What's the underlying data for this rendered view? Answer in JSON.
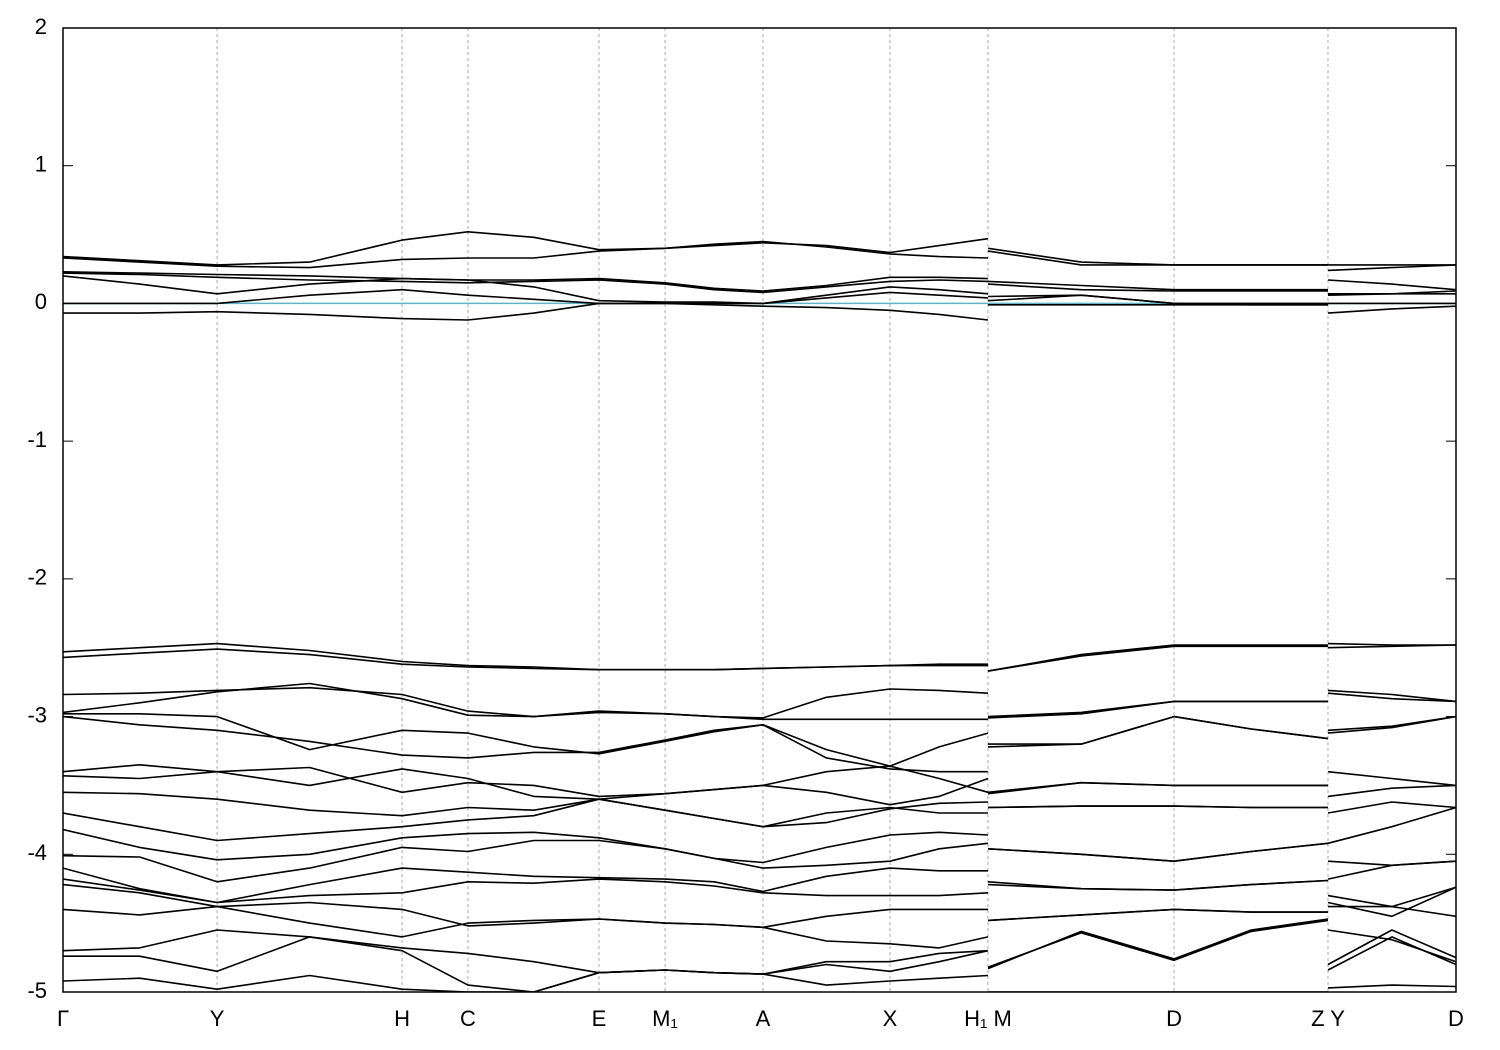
{
  "chart_data": {
    "type": "line",
    "color": "#000000",
    "grid": true,
    "hline": {
      "y": 0,
      "color": "#5fb3c4"
    },
    "xlim": [
      0,
      1
    ],
    "ylim": [
      -5,
      2
    ],
    "yticks": [
      -5,
      -4,
      -3,
      -2,
      -1,
      0,
      1,
      2
    ],
    "xticks": [
      {
        "value": 0,
        "label": "Γ"
      },
      {
        "value": 0.1106,
        "label": "Y"
      },
      {
        "value": 0.2434,
        "label": "H"
      },
      {
        "value": 0.2907,
        "label": "C"
      },
      {
        "value": 0.3848,
        "label": "E"
      },
      {
        "value": 0.4322,
        "label": "M₁"
      },
      {
        "value": 0.5025,
        "label": "A"
      },
      {
        "value": 0.5937,
        "label": "X"
      },
      {
        "value": 0.664,
        "label": "H₁ M"
      },
      {
        "value": 0.7976,
        "label": "D"
      },
      {
        "value": 0.9081,
        "label": "Z Y"
      },
      {
        "value": 1,
        "label": "D"
      }
    ],
    "x": [
      0,
      0.055,
      0.1106,
      0.177,
      0.2434,
      0.2907,
      0.338,
      0.3848,
      0.4322,
      0.4674,
      0.5025,
      0.548,
      0.5937,
      0.629,
      0.664,
      0.664,
      0.664,
      0.731,
      0.7976,
      0.853,
      0.9081,
      0.9081,
      0.9081,
      0.954,
      1
    ],
    "series": [
      {
        "values": [
          0.34,
          0.31,
          0.28,
          0.3,
          0.46,
          0.52,
          0.48,
          0.39,
          0.4,
          0.42,
          0.44,
          0.42,
          0.37,
          0.42,
          0.47,
          null,
          0.4,
          0.3,
          0.28,
          0.28,
          0.28,
          null,
          0.24,
          0.26,
          0.28
        ]
      },
      {
        "values": [
          0.33,
          0.3,
          0.27,
          0.26,
          0.32,
          0.33,
          0.33,
          0.38,
          0.4,
          0.43,
          0.45,
          0.41,
          0.36,
          0.34,
          0.33,
          null,
          0.38,
          0.28,
          0.28,
          0.28,
          0.28,
          null,
          0.28,
          0.28,
          0.28
        ]
      },
      {
        "values": [
          0.23,
          0.22,
          0.21,
          0.2,
          0.18,
          0.17,
          0.17,
          0.18,
          0.15,
          0.11,
          0.09,
          0.13,
          0.19,
          0.19,
          0.18,
          null,
          0.16,
          0.13,
          0.1,
          0.1,
          0.1,
          null,
          0.17,
          0.14,
          0.1
        ]
      },
      {
        "values": [
          0.22,
          0.21,
          0.19,
          0.17,
          0.16,
          0.15,
          0.16,
          0.17,
          0.14,
          0.1,
          0.08,
          0.12,
          0.16,
          0.17,
          0.16,
          null,
          0.14,
          0.1,
          0.09,
          0.09,
          0.09,
          null,
          0.06,
          0.07,
          0.09
        ]
      },
      {
        "values": [
          0.2,
          0.14,
          0.07,
          0.14,
          0.18,
          0.17,
          0.12,
          0.02,
          0.01,
          0.01,
          0.0,
          0.06,
          0.12,
          0.1,
          0.07,
          null,
          0.02,
          0.06,
          0.0,
          0.0,
          0.0,
          null,
          0.07,
          0.07,
          0.07
        ]
      },
      {
        "values": [
          0.0,
          0.0,
          0.0,
          0.06,
          0.1,
          0.06,
          0.03,
          0.0,
          0.0,
          0.0,
          0.0,
          0.04,
          0.08,
          0.06,
          0.04,
          null,
          0.05,
          0.06,
          0.0,
          -0.01,
          -0.01,
          null,
          0.0,
          0.0,
          0.0
        ]
      },
      {
        "values": [
          -0.07,
          -0.07,
          -0.06,
          -0.08,
          -0.11,
          -0.12,
          -0.07,
          0.0,
          0.0,
          -0.01,
          -0.02,
          -0.03,
          -0.05,
          -0.08,
          -0.12,
          null,
          -0.01,
          -0.01,
          -0.01,
          -0.01,
          -0.01,
          null,
          -0.07,
          -0.04,
          -0.02
        ]
      },
      {
        "values": [
          -2.53,
          -2.5,
          -2.47,
          -2.52,
          -2.6,
          -2.63,
          -2.64,
          -2.66,
          -2.66,
          -2.66,
          -2.65,
          -2.64,
          -2.63,
          -2.62,
          -2.62,
          null,
          -2.67,
          -2.55,
          -2.48,
          -2.48,
          -2.48,
          null,
          -2.47,
          -2.48,
          -2.48
        ]
      },
      {
        "values": [
          -2.57,
          -2.54,
          -2.51,
          -2.55,
          -2.62,
          -2.64,
          -2.65,
          -2.66,
          -2.66,
          -2.66,
          -2.65,
          -2.64,
          -2.63,
          -2.63,
          -2.63,
          null,
          -2.67,
          -2.56,
          -2.49,
          -2.49,
          -2.49,
          null,
          -2.5,
          -2.49,
          -2.48
        ]
      },
      {
        "values": [
          -2.84,
          -2.83,
          -2.81,
          -2.79,
          -2.84,
          -2.96,
          -3.0,
          -2.97,
          -2.98,
          -3.0,
          -3.01,
          -2.86,
          -2.8,
          -2.81,
          -2.83,
          null,
          -3.0,
          -2.97,
          -2.89,
          -2.89,
          -2.89,
          null,
          -2.81,
          -2.84,
          -2.89
        ]
      },
      {
        "values": [
          -2.97,
          -2.9,
          -2.82,
          -2.76,
          -2.87,
          -2.99,
          -3.0,
          -2.96,
          -2.98,
          -3.0,
          -3.02,
          -3.02,
          -3.02,
          -3.02,
          -3.02,
          null,
          -3.01,
          -2.98,
          -2.89,
          -2.89,
          -2.89,
          null,
          -2.83,
          -2.87,
          -2.89
        ]
      },
      {
        "values": [
          -3.0,
          -3.06,
          -3.1,
          -3.18,
          -3.28,
          -3.3,
          -3.26,
          -3.26,
          -3.17,
          -3.1,
          -3.06,
          -3.24,
          -3.36,
          -3.22,
          -3.12,
          null,
          -3.2,
          -3.2,
          -3.0,
          -3.09,
          -3.16,
          null,
          -3.12,
          -3.08,
          -3.0
        ]
      },
      {
        "values": [
          -2.98,
          -2.98,
          -3.0,
          -3.24,
          -3.1,
          -3.12,
          -3.22,
          -3.27,
          -3.18,
          -3.11,
          -3.06,
          -3.3,
          -3.38,
          -3.4,
          -3.4,
          null,
          -3.22,
          -3.2,
          -3.0,
          -3.09,
          -3.16,
          null,
          -3.1,
          -3.07,
          -3.0
        ]
      },
      {
        "values": [
          -3.4,
          -3.35,
          -3.4,
          -3.37,
          -3.55,
          -3.48,
          -3.5,
          -3.58,
          -3.56,
          -3.53,
          -3.5,
          -3.4,
          -3.36,
          -3.45,
          -3.55,
          null,
          -3.56,
          -3.48,
          -3.5,
          -3.5,
          -3.5,
          null,
          -3.4,
          -3.45,
          -3.5
        ]
      },
      {
        "values": [
          -3.43,
          -3.45,
          -3.4,
          -3.5,
          -3.38,
          -3.45,
          -3.58,
          -3.6,
          -3.56,
          -3.53,
          -3.5,
          -3.55,
          -3.64,
          -3.58,
          -3.45,
          null,
          -3.55,
          -3.48,
          -3.5,
          -3.5,
          -3.5,
          null,
          -3.58,
          -3.52,
          -3.5
        ]
      },
      {
        "values": [
          -3.55,
          -3.56,
          -3.6,
          -3.68,
          -3.72,
          -3.66,
          -3.68,
          -3.6,
          -3.68,
          -3.74,
          -3.8,
          -3.77,
          -3.67,
          -3.63,
          -3.62,
          null,
          -3.66,
          -3.65,
          -3.65,
          -3.66,
          -3.66,
          null,
          -3.7,
          -3.62,
          -3.66
        ]
      },
      {
        "values": [
          -3.7,
          -3.8,
          -3.9,
          -3.85,
          -3.8,
          -3.75,
          -3.72,
          -3.6,
          -3.68,
          -3.74,
          -3.8,
          -3.7,
          -3.66,
          -3.7,
          -3.7,
          null,
          -3.66,
          -3.65,
          -3.65,
          -3.66,
          -3.66,
          null,
          -3.92,
          -3.8,
          -3.66
        ]
      },
      {
        "values": [
          -3.82,
          -3.95,
          -4.04,
          -4.0,
          -3.88,
          -3.85,
          -3.84,
          -3.88,
          -3.96,
          -4.03,
          -4.06,
          -3.95,
          -3.86,
          -3.84,
          -3.86,
          null,
          -3.96,
          -4.0,
          -4.05,
          -3.98,
          -3.92,
          null,
          -4.05,
          -4.08,
          -4.05
        ]
      },
      {
        "values": [
          -4.01,
          -4.02,
          -4.2,
          -4.1,
          -3.95,
          -3.98,
          -3.9,
          -3.9,
          -3.96,
          -4.03,
          -4.1,
          -4.08,
          -4.05,
          -3.96,
          -3.92,
          null,
          -3.96,
          -4.0,
          -4.05,
          -3.98,
          -3.92,
          null,
          -4.18,
          -4.08,
          -4.05
        ]
      },
      {
        "values": [
          -4.1,
          -4.25,
          -4.35,
          -4.22,
          -4.1,
          -4.13,
          -4.16,
          -4.17,
          -4.18,
          -4.2,
          -4.27,
          -4.16,
          -4.1,
          -4.12,
          -4.12,
          null,
          -4.2,
          -4.25,
          -4.26,
          -4.22,
          -4.19,
          null,
          -4.3,
          -4.38,
          -4.24
        ]
      },
      {
        "values": [
          -4.18,
          -4.26,
          -4.35,
          -4.3,
          -4.28,
          -4.2,
          -4.21,
          -4.18,
          -4.2,
          -4.23,
          -4.28,
          -4.3,
          -4.3,
          -4.3,
          -4.28,
          null,
          -4.22,
          -4.25,
          -4.26,
          -4.22,
          -4.19,
          null,
          -4.35,
          -4.45,
          -4.24
        ]
      },
      {
        "values": [
          -4.22,
          -4.28,
          -4.38,
          -4.35,
          -4.4,
          -4.52,
          -4.5,
          -4.47,
          -4.5,
          -4.51,
          -4.53,
          -4.45,
          -4.4,
          -4.4,
          -4.4,
          null,
          -4.48,
          -4.44,
          -4.4,
          -4.42,
          -4.42,
          null,
          -4.38,
          -4.38,
          -4.45
        ]
      },
      {
        "values": [
          -4.4,
          -4.44,
          -4.38,
          -4.5,
          -4.6,
          -4.5,
          -4.48,
          -4.47,
          -4.5,
          -4.51,
          -4.53,
          -4.63,
          -4.65,
          -4.68,
          -4.6,
          null,
          -4.48,
          -4.44,
          -4.4,
          -4.42,
          -4.42,
          null,
          -4.55,
          -4.62,
          -4.78
        ]
      },
      {
        "values": [
          -4.7,
          -4.68,
          -4.55,
          -4.6,
          -4.68,
          -4.72,
          -4.78,
          -4.86,
          -4.84,
          -4.86,
          -4.87,
          -4.8,
          -4.85,
          -4.78,
          -4.7,
          null,
          -4.83,
          -4.56,
          -4.76,
          -4.55,
          -4.47,
          null,
          -4.84,
          -4.6,
          -4.8
        ]
      },
      {
        "values": [
          -4.74,
          -4.74,
          -4.85,
          -4.6,
          -4.7,
          -4.95,
          -5.0,
          -4.86,
          -4.84,
          -4.86,
          -4.87,
          -4.95,
          -4.92,
          -4.9,
          -4.88,
          null,
          -4.82,
          -4.57,
          -4.77,
          -4.56,
          -4.48,
          null,
          -4.8,
          -4.55,
          -4.75
        ]
      },
      {
        "values": [
          -4.92,
          -4.9,
          -4.98,
          -4.88,
          -4.98,
          -5.0,
          -5.0,
          -4.86,
          -4.84,
          -4.86,
          -4.87,
          -4.78,
          -4.78,
          -4.72,
          -4.7,
          null,
          -5.0,
          -5.0,
          -5.0,
          -5.0,
          -5.0,
          null,
          -4.97,
          -4.95,
          -4.96
        ]
      }
    ]
  }
}
